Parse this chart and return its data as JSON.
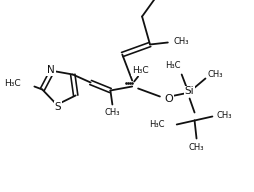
{
  "bg_color": "#ffffff",
  "line_color": "#111111",
  "lw": 1.3,
  "fs": 6.5,
  "fig_w": 2.55,
  "fig_h": 1.92,
  "dpi": 100,
  "xlim": [
    0,
    255
  ],
  "ylim": [
    0,
    192
  ]
}
